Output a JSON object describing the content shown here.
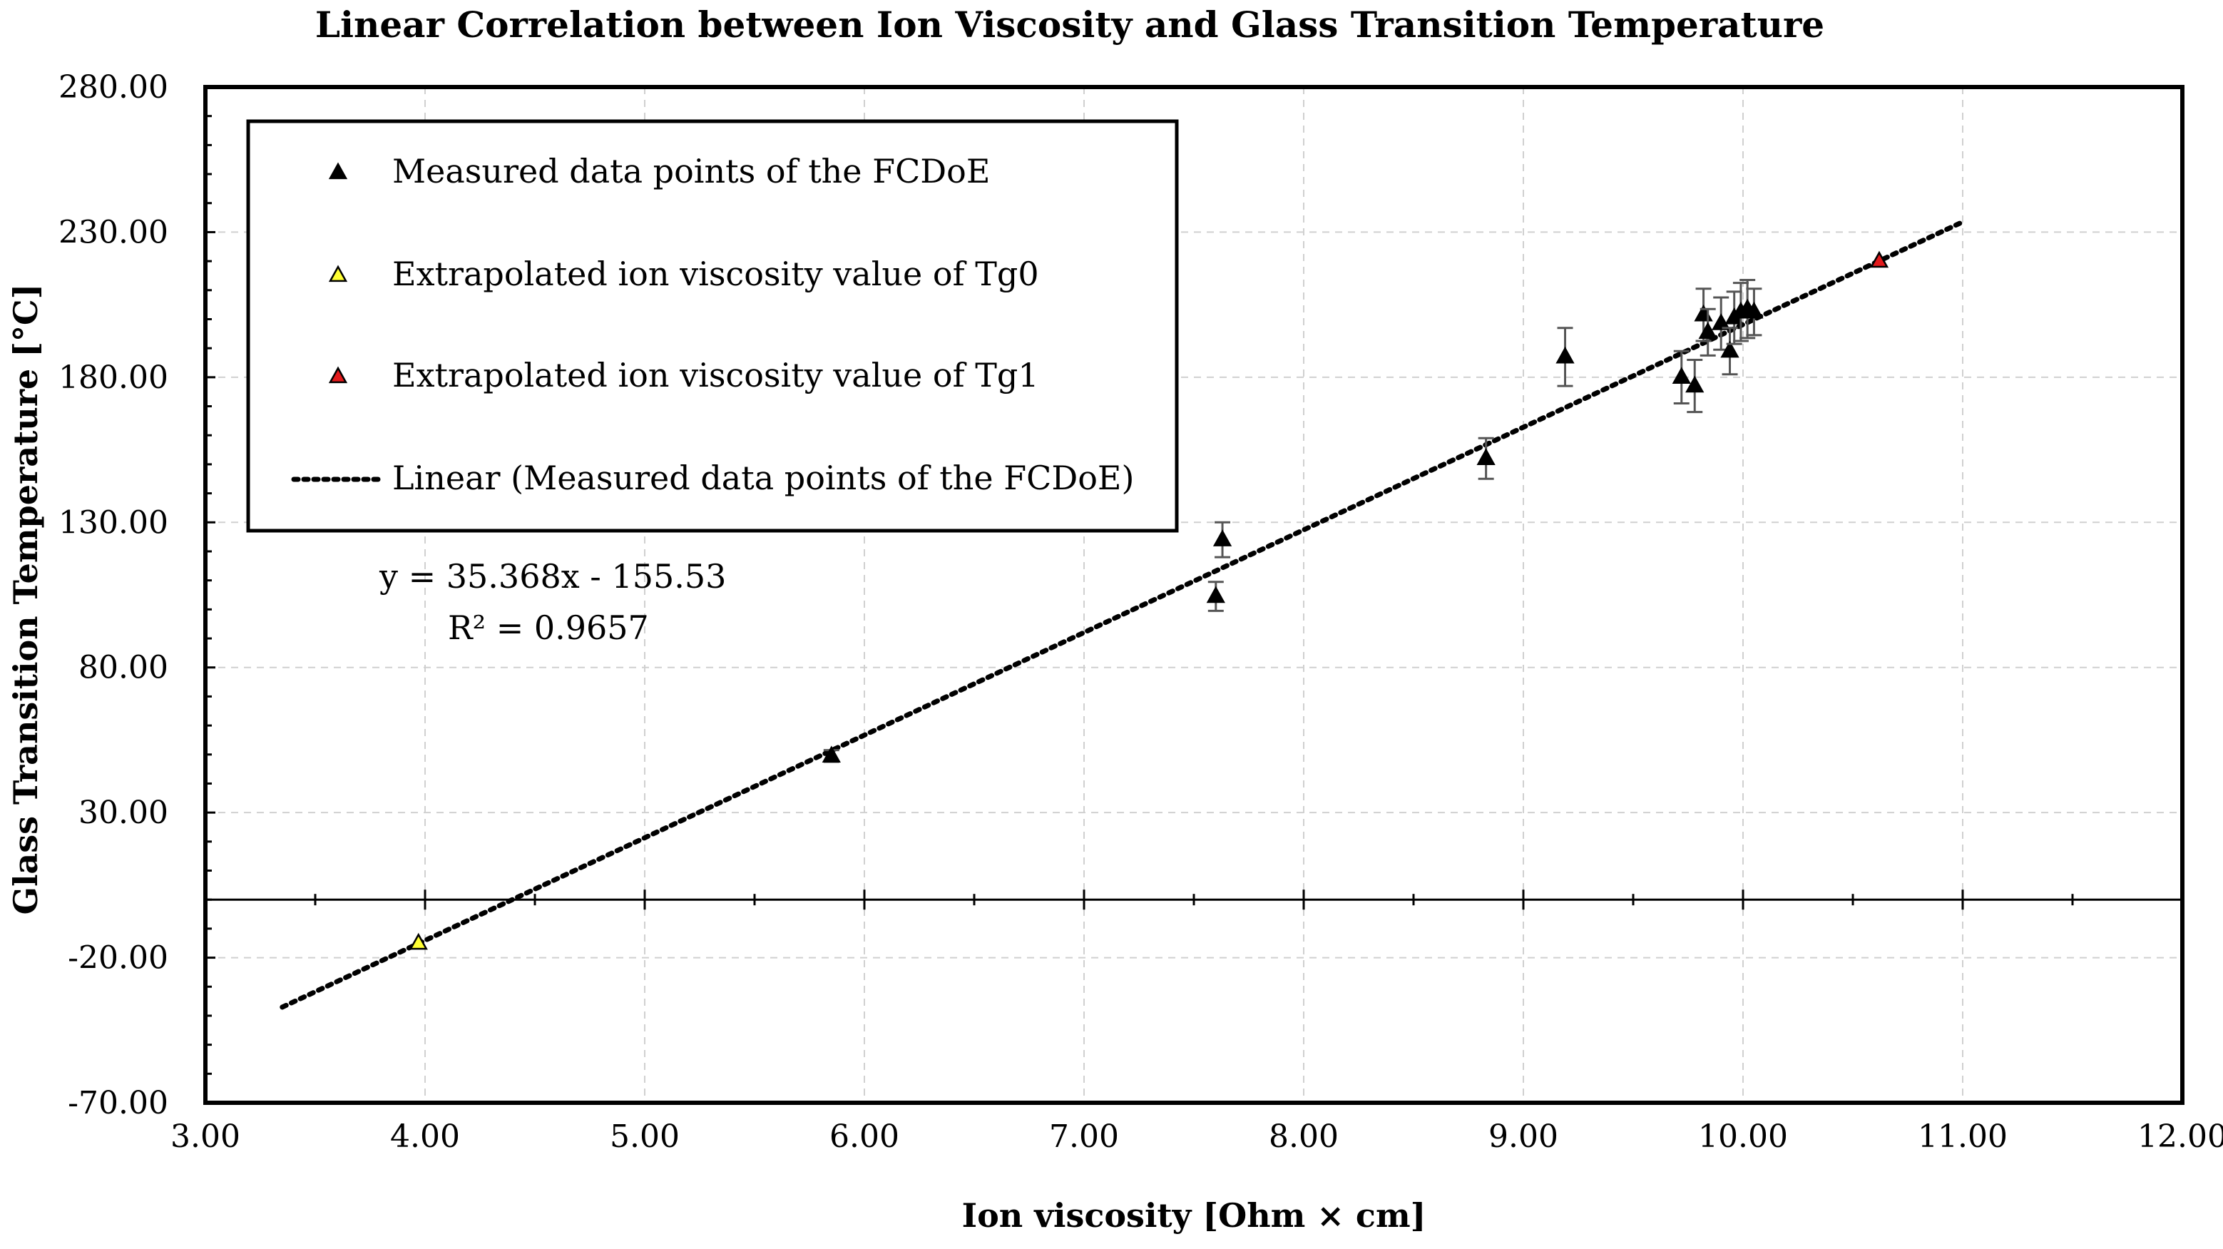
{
  "chart_data": {
    "type": "scatter",
    "title": "Linear Correlation between Ion Viscosity and Glass Transition Temperature",
    "xlabel": "Ion viscosity [Ohm × cm]",
    "ylabel": "Glass Transition Temperature [°C]",
    "xlim": [
      3.0,
      12.0
    ],
    "ylim": [
      -70.0,
      280.0
    ],
    "x_ticks": [
      "3.00",
      "4.00",
      "5.00",
      "6.00",
      "7.00",
      "8.00",
      "9.00",
      "10.00",
      "11.00",
      "12.00"
    ],
    "y_ticks": [
      "280.00",
      "230.00",
      "180.00",
      "130.00",
      "80.00",
      "30.00",
      "-20.00",
      "-70.00"
    ],
    "grid": true,
    "legend_position": "top-left",
    "series": [
      {
        "name": "Measured data points of the FCDoE",
        "marker": "triangle",
        "color": "#000000",
        "points": [
          {
            "x": 5.85,
            "y": 49.5,
            "err": 2
          },
          {
            "x": 7.6,
            "y": 104.5,
            "err": 5
          },
          {
            "x": 7.63,
            "y": 124,
            "err": 6
          },
          {
            "x": 8.83,
            "y": 152,
            "err": 7
          },
          {
            "x": 9.19,
            "y": 187,
            "err": 10
          },
          {
            "x": 9.72,
            "y": 180,
            "err": 9
          },
          {
            "x": 9.78,
            "y": 177,
            "err": 9
          },
          {
            "x": 9.82,
            "y": 201.5,
            "err": 9
          },
          {
            "x": 9.84,
            "y": 195.5,
            "err": 8
          },
          {
            "x": 9.9,
            "y": 198.5,
            "err": 9
          },
          {
            "x": 9.94,
            "y": 189,
            "err": 8
          },
          {
            "x": 9.96,
            "y": 200.5,
            "err": 9
          },
          {
            "x": 9.99,
            "y": 202.5,
            "err": 10
          },
          {
            "x": 10.02,
            "y": 203.5,
            "err": 10
          },
          {
            "x": 10.05,
            "y": 202.5,
            "err": 8
          }
        ]
      },
      {
        "name": "Extrapolated ion viscosity value of Tg0",
        "marker": "triangle",
        "color": "#ffff33",
        "points": [
          {
            "x": 3.97,
            "y": -15
          }
        ]
      },
      {
        "name": "Extrapolated ion viscosity value of Tg1",
        "marker": "triangle",
        "color": "#e31a1c",
        "points": [
          {
            "x": 10.62,
            "y": 220
          }
        ]
      }
    ],
    "trendline": {
      "name": "Linear (Measured data points of the FCDoE)",
      "style": "dotted",
      "slope": 35.368,
      "intercept": -155.53,
      "x_range": [
        3.35,
        11.0
      ],
      "equation": "y = 35.368x - 155.53",
      "r_squared": "R² = 0.9657"
    },
    "zero_line": {
      "y": 0.0
    }
  }
}
